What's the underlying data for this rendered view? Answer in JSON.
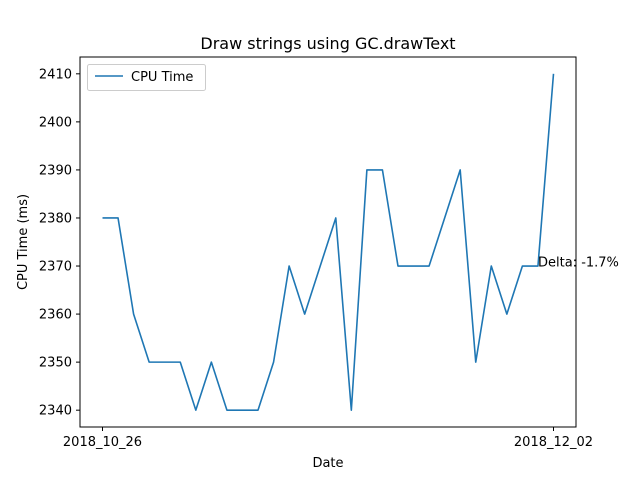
{
  "chart_data": {
    "type": "line",
    "title": "Draw strings using GC.drawText",
    "xlabel": "Date",
    "ylabel": "CPU Time (ms)",
    "x_tick_labels": [
      "2018_10_26",
      "2018_12_02"
    ],
    "y_ticks": [
      2340,
      2350,
      2360,
      2370,
      2380,
      2390,
      2400,
      2410
    ],
    "ylim": [
      2336.5,
      2413.5
    ],
    "legend": {
      "position": "upper-left"
    },
    "grid": false,
    "series": [
      {
        "name": "CPU Time",
        "color": "#1f77b4",
        "values": [
          2380,
          2380,
          2360,
          2350,
          2350,
          2350,
          2340,
          2350,
          2340,
          2340,
          2340,
          2350,
          2370,
          2360,
          2370,
          2380,
          2340,
          2390,
          2390,
          2370,
          2370,
          2370,
          2380,
          2390,
          2350,
          2370,
          2360,
          2370,
          2370,
          2410
        ]
      }
    ],
    "annotations": [
      {
        "text": "Delta: -1.7%",
        "y": 2370
      }
    ]
  }
}
